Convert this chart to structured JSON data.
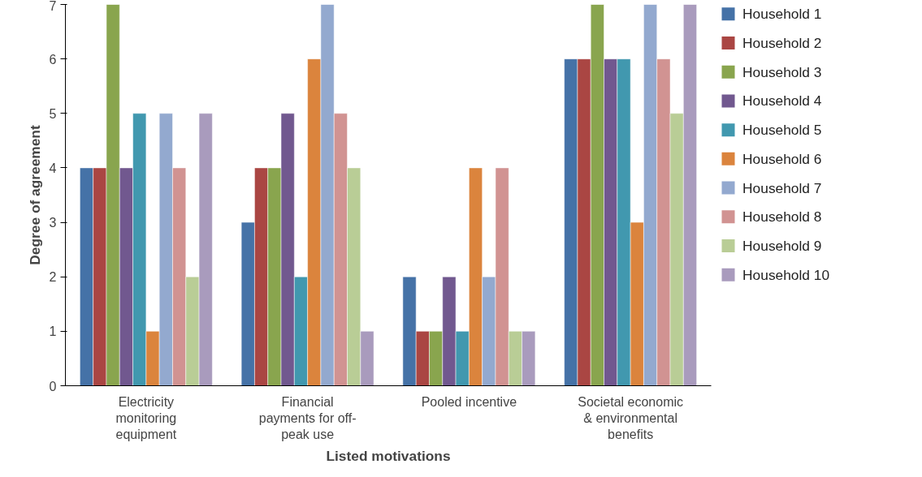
{
  "chart_data": {
    "type": "bar",
    "xlabel": "Listed motivations",
    "ylabel": "Degree of agreement",
    "categories": [
      "Electricity monitoring equipment",
      "Financial payments for off-peak use",
      "Pooled incentive",
      "Societal economic & environmental benefits"
    ],
    "ylim": [
      0,
      7
    ],
    "yticks": [
      0,
      1,
      2,
      3,
      4,
      5,
      6,
      7
    ],
    "grid": false,
    "legend": "right",
    "series": [
      {
        "name": "Household 1",
        "color": "#4572a7",
        "values": [
          4,
          3,
          2,
          6
        ]
      },
      {
        "name": "Household 2",
        "color": "#aa4643",
        "values": [
          4,
          4,
          1,
          6
        ]
      },
      {
        "name": "Household 3",
        "color": "#89a54e",
        "values": [
          7,
          4,
          1,
          7
        ]
      },
      {
        "name": "Household 4",
        "color": "#71588f",
        "values": [
          4,
          5,
          2,
          6
        ]
      },
      {
        "name": "Household 5",
        "color": "#4198af",
        "values": [
          5,
          2,
          1,
          6
        ]
      },
      {
        "name": "Household 6",
        "color": "#db843d",
        "values": [
          1,
          6,
          4,
          3
        ]
      },
      {
        "name": "Household 7",
        "color": "#93a9cf",
        "values": [
          5,
          7,
          2,
          7
        ]
      },
      {
        "name": "Household 8",
        "color": "#d19392",
        "values": [
          4,
          5,
          4,
          6
        ]
      },
      {
        "name": "Household 9",
        "color": "#b9cd96",
        "values": [
          2,
          4,
          1,
          5
        ]
      },
      {
        "name": "Household 10",
        "color": "#a99bbd",
        "values": [
          5,
          1,
          1,
          7
        ]
      }
    ]
  }
}
